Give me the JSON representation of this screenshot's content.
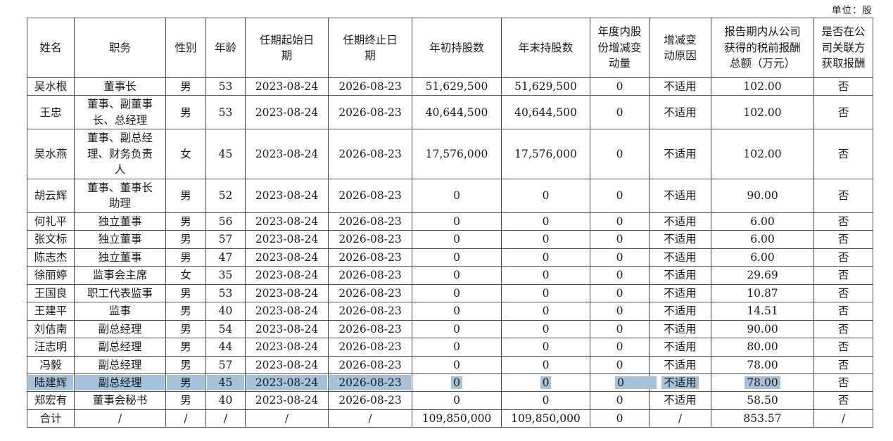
{
  "unit_label": "单位：股",
  "table": {
    "headers": [
      "姓名",
      "职务",
      "性别",
      "年龄",
      "任期起始日期",
      "任期终止日期",
      "年初持股数",
      "年末持股数",
      "年度内股份增减变动量",
      "增减变动原因",
      "报告期内从公司获得的税前报酬总额（万元）",
      "是否在公司关联方获取报酬"
    ],
    "rows": [
      [
        "吴水根",
        "董事长",
        "男",
        "53",
        "2023-08-24",
        "2026-08-23",
        "51,629,500",
        "51,629,500",
        "0",
        "不适用",
        "102.00",
        "否"
      ],
      [
        "王忠",
        "董事、副董事长、总经理",
        "男",
        "53",
        "2023-08-24",
        "2026-08-23",
        "40,644,500",
        "40,644,500",
        "0",
        "不适用",
        "102.00",
        "否"
      ],
      [
        "吴水燕",
        "董事、副总经理、财务负责人",
        "女",
        "45",
        "2023-08-24",
        "2026-08-23",
        "17,576,000",
        "17,576,000",
        "0",
        "不适用",
        "102.00",
        "否"
      ],
      [
        "胡云辉",
        "董事、董事长助理",
        "男",
        "52",
        "2023-08-24",
        "2026-08-23",
        "0",
        "0",
        "0",
        "不适用",
        "90.00",
        "否"
      ],
      [
        "何礼平",
        "独立董事",
        "男",
        "56",
        "2023-08-24",
        "2026-08-23",
        "0",
        "0",
        "0",
        "不适用",
        "6.00",
        "否"
      ],
      [
        "张文标",
        "独立董事",
        "男",
        "57",
        "2023-08-24",
        "2026-08-23",
        "0",
        "0",
        "0",
        "不适用",
        "6.00",
        "否"
      ],
      [
        "陈志杰",
        "独立董事",
        "男",
        "47",
        "2023-08-24",
        "2026-08-23",
        "0",
        "0",
        "0",
        "不适用",
        "6.00",
        "否"
      ],
      [
        "徐丽婷",
        "监事会主席",
        "女",
        "35",
        "2023-08-24",
        "2026-08-23",
        "0",
        "0",
        "0",
        "不适用",
        "29.69",
        "否"
      ],
      [
        "王国良",
        "职工代表监事",
        "男",
        "53",
        "2023-08-24",
        "2026-08-23",
        "0",
        "0",
        "0",
        "不适用",
        "10.87",
        "否"
      ],
      [
        "王建平",
        "监事",
        "男",
        "40",
        "2023-08-24",
        "2026-08-23",
        "0",
        "0",
        "0",
        "不适用",
        "14.51",
        "否"
      ],
      [
        "刘佶南",
        "副总经理",
        "男",
        "54",
        "2023-08-24",
        "2026-08-23",
        "0",
        "0",
        "0",
        "不适用",
        "90.00",
        "否"
      ],
      [
        "汪志明",
        "副总经理",
        "男",
        "44",
        "2023-08-24",
        "2026-08-23",
        "0",
        "0",
        "0",
        "不适用",
        "80.00",
        "否"
      ],
      [
        "冯毅",
        "副总经理",
        "男",
        "57",
        "2023-08-24",
        "2026-08-23",
        "0",
        "0",
        "0",
        "不适用",
        "78.00",
        "否"
      ],
      [
        "陆建辉",
        "副总经理",
        "男",
        "45",
        "2023-08-24",
        "2026-08-23",
        "0",
        "0",
        "0",
        "不适用",
        "78.00",
        "否"
      ],
      [
        "郑宏有",
        "董事会秘书",
        "男",
        "40",
        "2023-08-24",
        "2026-08-23",
        "0",
        "0",
        "0",
        "不适用",
        "58.50",
        "否"
      ],
      [
        "合计",
        "/",
        "/",
        "/",
        "/",
        "/",
        "109,850,000",
        "109,850,000",
        "0",
        "/",
        "853.57",
        "/"
      ]
    ],
    "highlight": {
      "row_index": 13,
      "full_cell_columns": [
        0,
        1,
        2,
        3,
        4,
        5
      ],
      "text_columns": [
        6,
        7,
        8,
        9,
        10
      ],
      "extend_right_column": 8,
      "color": "#a6c2db"
    }
  }
}
